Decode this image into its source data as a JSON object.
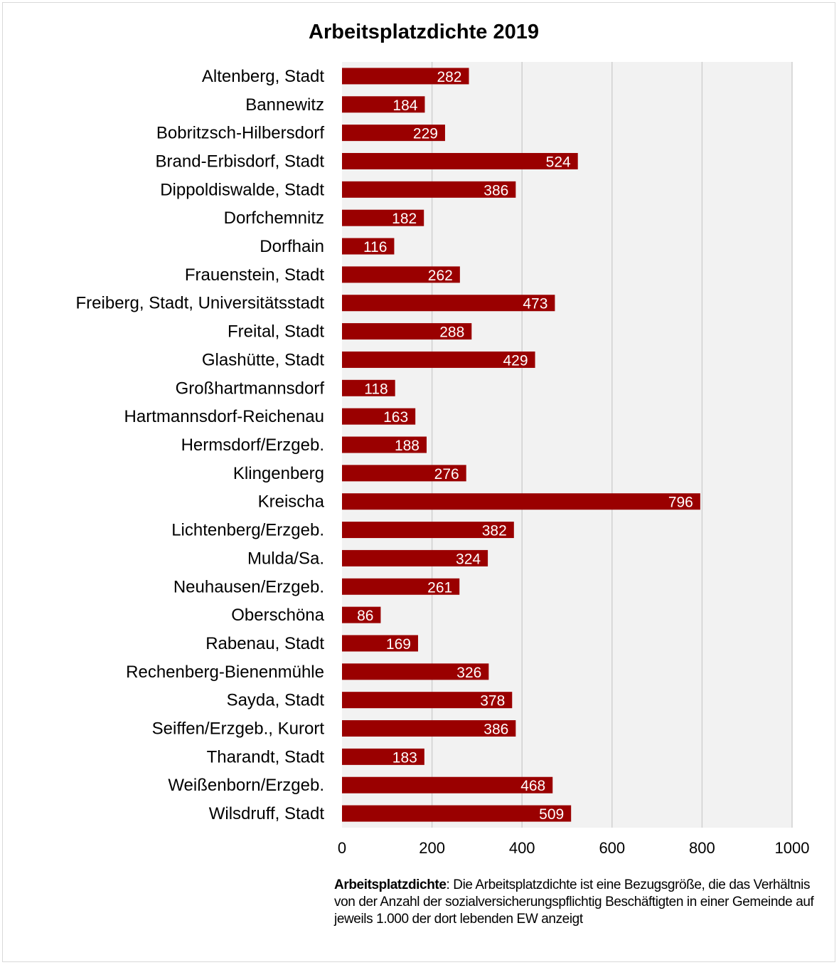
{
  "chart_data": {
    "type": "bar",
    "orientation": "horizontal",
    "title": "Arbeitsplatzdichte 2019",
    "xlabel": "",
    "ylabel": "",
    "xlim": [
      0,
      1000
    ],
    "x_ticks": [
      "0",
      "200",
      "400",
      "600",
      "800",
      "1000"
    ],
    "grid": "vertical",
    "legend": "none",
    "categories": [
      "Altenberg, Stadt",
      "Bannewitz",
      "Bobritzsch-Hilbersdorf",
      "Brand-Erbisdorf, Stadt",
      "Dippoldiswalde, Stadt",
      "Dorfchemnitz",
      "Dorfhain",
      "Frauenstein, Stadt",
      "Freiberg, Stadt, Universitätsstadt",
      "Freital, Stadt",
      "Glashütte, Stadt",
      "Großhartmannsdorf",
      "Hartmannsdorf-Reichenau",
      "Hermsdorf/Erzgeb.",
      "Klingenberg",
      "Kreischa",
      "Lichtenberg/Erzgeb.",
      "Mulda/Sa.",
      "Neuhausen/Erzgeb.",
      "Oberschöna",
      "Rabenau, Stadt",
      "Rechenberg-Bienenmühle",
      "Sayda, Stadt",
      "Seiffen/Erzgeb., Kurort",
      "Tharandt, Stadt",
      "Weißenborn/Erzgeb.",
      "Wilsdruff, Stadt"
    ],
    "values": [
      282,
      184,
      229,
      524,
      386,
      182,
      116,
      262,
      473,
      288,
      429,
      118,
      163,
      188,
      276,
      796,
      382,
      324,
      261,
      86,
      169,
      326,
      378,
      386,
      183,
      468,
      509
    ],
    "colors": {
      "bar": "#9a0000",
      "plot_background": "#f2f2f2",
      "gridline": "#d0d0d0",
      "label_text": "#ffffff"
    }
  },
  "note": {
    "term": "Arbeitsplatzdichte",
    "text": ": Die Arbeitsplatzdichte ist eine Bezugsgröße, die das Verhältnis von der Anzahl der sozialversicherungspflichtig Beschäftigten in einer Gemeinde auf jeweils 1.000 der dort lebenden EW anzeigt"
  }
}
